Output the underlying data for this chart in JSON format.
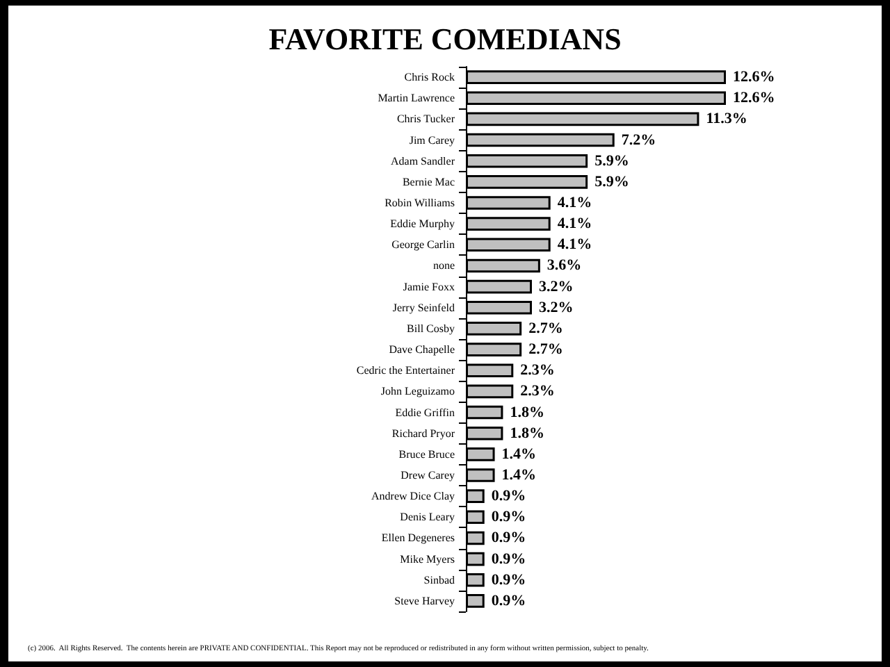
{
  "chart_data": {
    "type": "bar",
    "orientation": "horizontal",
    "title": "FAVORITE COMEDIANS",
    "categories": [
      "Chris Rock",
      "Martin Lawrence",
      "Chris Tucker",
      "Jim Carey",
      "Adam Sandler",
      "Bernie Mac",
      "Robin Williams",
      "Eddie Murphy",
      "George Carlin",
      "none",
      "Jamie Foxx",
      "Jerry Seinfeld",
      "Bill Cosby",
      "Dave Chapelle",
      "Cedric the Entertainer",
      "John Leguizamo",
      "Eddie Griffin",
      "Richard Pryor",
      "Bruce Bruce",
      "Drew Carey",
      "Andrew Dice Clay",
      "Denis Leary",
      "Ellen Degeneres",
      "Mike Myers",
      "Sinbad",
      "Steve Harvey"
    ],
    "values": [
      12.6,
      12.6,
      11.3,
      7.2,
      5.9,
      5.9,
      4.1,
      4.1,
      4.1,
      3.6,
      3.2,
      3.2,
      2.7,
      2.7,
      2.3,
      2.3,
      1.8,
      1.8,
      1.4,
      1.4,
      0.9,
      0.9,
      0.9,
      0.9,
      0.9,
      0.9
    ],
    "value_labels": [
      "12.6%",
      "12.6%",
      "11.3%",
      "7.2%",
      "5.9%",
      "5.9%",
      "4.1%",
      "4.1%",
      "4.1%",
      "3.6%",
      "3.2%",
      "3.2%",
      "2.7%",
      "2.7%",
      "2.3%",
      "2.3%",
      "1.8%",
      "1.8%",
      "1.4%",
      "1.4%",
      "0.9%",
      "0.9%",
      "0.9%",
      "0.9%",
      "0.9%",
      "0.9%"
    ],
    "color": "#c0c0c0",
    "tick_labels": "y",
    "annotations": [
      "(c) 2006.  All Rights Reserved.  The contents herein are PRIVATE AND CONFIDENTIAL. This Report may not be reproduced or redistributed in any form without written permission, subject to penalty."
    ]
  }
}
